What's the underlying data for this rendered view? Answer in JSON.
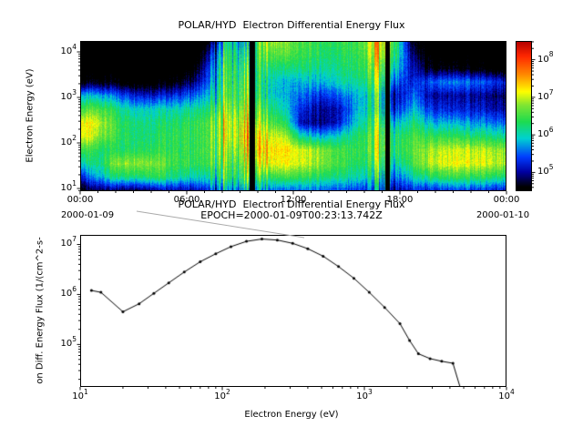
{
  "figure_bg": "#ffffff",
  "chart_data": [
    {
      "type": "heatmap",
      "title": "POLAR/HYD  Electron Differential Energy Flux",
      "ylabel": "Electron Energy (eV)",
      "x_axis": {
        "tick_labels": [
          "00:00",
          "06:00",
          "12:00",
          "18:00",
          "00:00"
        ],
        "tick_hours": [
          0,
          6,
          12,
          18,
          24
        ],
        "date_left": "2000-01-09",
        "date_right": "2000-01-10",
        "range_hours": [
          0,
          24
        ]
      },
      "y_axis": {
        "tick_exponents": [
          1,
          2,
          3,
          4
        ],
        "range_log10_ev": [
          0.94,
          4.24
        ]
      },
      "colorbar": {
        "tick_exponents": [
          5,
          6,
          7,
          8
        ],
        "range_log10_flux": [
          4.5,
          8.5
        ]
      },
      "colormap_stops": [
        [
          4.0,
          "#000000"
        ],
        [
          4.6,
          "#000000"
        ],
        [
          5.0,
          "#0000a0"
        ],
        [
          5.4,
          "#003cff"
        ],
        [
          5.9,
          "#00d2d2"
        ],
        [
          6.35,
          "#1edc50"
        ],
        [
          6.8,
          "#82e632"
        ],
        [
          7.15,
          "#ffff00"
        ],
        [
          7.6,
          "#ff8c00"
        ],
        [
          8.1,
          "#ff2800"
        ],
        [
          8.5,
          "#b40000"
        ]
      ],
      "grid": {
        "description": "log10 differential energy flux; rows are energy from 10^4 eV (top) to 10^1 eV (bottom), columns are hours 00-24 of 2000-01-09",
        "values": [
          [
            4,
            4,
            4,
            4,
            4,
            4,
            4,
            4.5,
            6.0,
            5.5,
            6.8,
            6.8,
            6.5,
            6.4,
            6.4,
            6.5,
            7.0,
            6.5,
            4.5,
            4.2,
            4.2,
            4.2,
            4.1,
            4.1
          ],
          [
            4,
            4,
            4,
            4,
            4,
            4,
            4,
            5.0,
            6.2,
            5.8,
            6.5,
            6.6,
            6.4,
            6.3,
            6.3,
            6.4,
            6.8,
            6.3,
            4.8,
            4.3,
            4.3,
            4.3,
            4.2,
            4.2
          ],
          [
            4.2,
            4.2,
            4.2,
            4.1,
            4.1,
            4.2,
            4.3,
            5.3,
            6.3,
            6.0,
            6.2,
            6.2,
            6.2,
            6.1,
            6.2,
            6.3,
            6.5,
            6.0,
            5.0,
            4.6,
            4.6,
            4.5,
            4.4,
            4.3
          ],
          [
            4.5,
            4.6,
            4.5,
            4.4,
            4.4,
            4.5,
            4.8,
            5.5,
            6.3,
            6.2,
            6.0,
            5.8,
            5.8,
            5.8,
            6.0,
            6.1,
            6.3,
            5.5,
            5.2,
            5.5,
            5.6,
            5.6,
            5.4,
            5.2
          ],
          [
            5.8,
            5.8,
            5.5,
            5.3,
            5.2,
            5.3,
            5.5,
            5.8,
            6.4,
            6.3,
            6.0,
            5.8,
            5.5,
            5.3,
            5.5,
            5.8,
            6.0,
            5.0,
            5.5,
            5.0,
            5.0,
            5.0,
            4.9,
            4.8
          ],
          [
            6.5,
            6.6,
            6.2,
            6.0,
            6.0,
            6.0,
            6.1,
            6.2,
            6.6,
            6.5,
            6.3,
            6.0,
            5.2,
            5.0,
            5.1,
            5.8,
            6.0,
            5.2,
            5.8,
            5.3,
            5.2,
            5.2,
            5.1,
            5.0
          ],
          [
            7.2,
            7.0,
            6.4,
            6.3,
            6.2,
            6.3,
            6.4,
            6.5,
            6.8,
            6.8,
            6.6,
            6.4,
            5.0,
            4.9,
            5.2,
            6.0,
            6.2,
            5.8,
            6.2,
            5.8,
            5.8,
            5.7,
            5.6,
            5.5
          ],
          [
            7.2,
            6.8,
            6.4,
            6.3,
            6.3,
            6.4,
            6.4,
            6.5,
            6.8,
            7.0,
            7.0,
            7.0,
            6.0,
            5.8,
            6.0,
            6.3,
            6.4,
            6.2,
            6.5,
            6.4,
            6.4,
            6.3,
            6.2,
            6.1
          ],
          [
            6.5,
            6.3,
            6.3,
            6.4,
            6.4,
            6.4,
            6.4,
            6.5,
            6.6,
            6.8,
            7.2,
            7.3,
            7.0,
            6.8,
            6.5,
            6.4,
            6.4,
            6.3,
            6.6,
            6.9,
            7.0,
            7.0,
            6.9,
            6.8
          ],
          [
            6.0,
            6.2,
            6.8,
            6.9,
            6.8,
            6.5,
            6.4,
            6.4,
            6.4,
            6.5,
            7.0,
            7.2,
            7.0,
            6.8,
            6.5,
            6.3,
            6.2,
            6.0,
            6.5,
            7.0,
            7.1,
            7.1,
            7.0,
            6.9
          ],
          [
            5.2,
            5.8,
            6.2,
            6.3,
            6.4,
            6.2,
            6.0,
            6.0,
            6.2,
            6.2,
            6.3,
            6.5,
            6.4,
            6.3,
            6.2,
            6.0,
            5.8,
            5.5,
            6.0,
            6.3,
            6.4,
            6.4,
            6.3,
            6.2
          ],
          [
            4.5,
            4.8,
            4.8,
            4.8,
            5.0,
            5.0,
            5.0,
            5.2,
            5.5,
            5.5,
            5.5,
            5.5,
            5.5,
            5.5,
            5.4,
            5.3,
            5.2,
            5.0,
            5.2,
            5.2,
            5.3,
            5.3,
            5.2,
            5.1
          ]
        ]
      },
      "features": {
        "active_ranges": [
          [
            7.3,
            10.6
          ],
          [
            16.2,
            18.1
          ]
        ],
        "bright_ranges": [
          [
            8.05,
            8.3
          ],
          [
            9.25,
            9.5
          ],
          [
            10.0,
            10.2
          ],
          [
            16.55,
            16.85
          ]
        ],
        "gap_ranges": [
          [
            9.55,
            9.85
          ],
          [
            17.2,
            17.45
          ]
        ]
      }
    },
    {
      "type": "line",
      "title": "POLAR/HYD  Electron Differential Energy Flux",
      "subtitle": "EPOCH=2000-01-09T00:23:13.742Z",
      "xlabel": "Electron Energy (eV)",
      "ylabel": "on Diff. Energy Flux (1/(cm^2-s-",
      "x_axis": {
        "tick_exponents": [
          1,
          2,
          3,
          4
        ],
        "range_log10": [
          1,
          4
        ]
      },
      "y_axis": {
        "tick_exponents": [
          5,
          6,
          7
        ],
        "range_log10": [
          4.15,
          7.19
        ]
      },
      "line_color": "#000000",
      "marker": "point",
      "points": [
        [
          12,
          1200000.0
        ],
        [
          14,
          1100000.0
        ],
        [
          20,
          450000.0
        ],
        [
          26,
          650000.0
        ],
        [
          33,
          1050000.0
        ],
        [
          42,
          1700000.0
        ],
        [
          54,
          2800000.0
        ],
        [
          70,
          4500000.0
        ],
        [
          90,
          6500000.0
        ],
        [
          115,
          9000000.0
        ],
        [
          148,
          11500000.0
        ],
        [
          190,
          12800000.0
        ],
        [
          244,
          12200000.0
        ],
        [
          313,
          10500000.0
        ],
        [
          400,
          8200000.0
        ],
        [
          513,
          5800000.0
        ],
        [
          658,
          3600000.0
        ],
        [
          844,
          2100000.0
        ],
        [
          1082,
          1100000.0
        ],
        [
          1388,
          550000.0
        ],
        [
          1780,
          260000.0
        ],
        [
          2080,
          120000.0
        ],
        [
          2400,
          65000.0
        ],
        [
          2900,
          52000.0
        ],
        [
          3500,
          46000.0
        ],
        [
          4200,
          42000.0
        ],
        [
          5000,
          8000.0
        ]
      ]
    }
  ]
}
